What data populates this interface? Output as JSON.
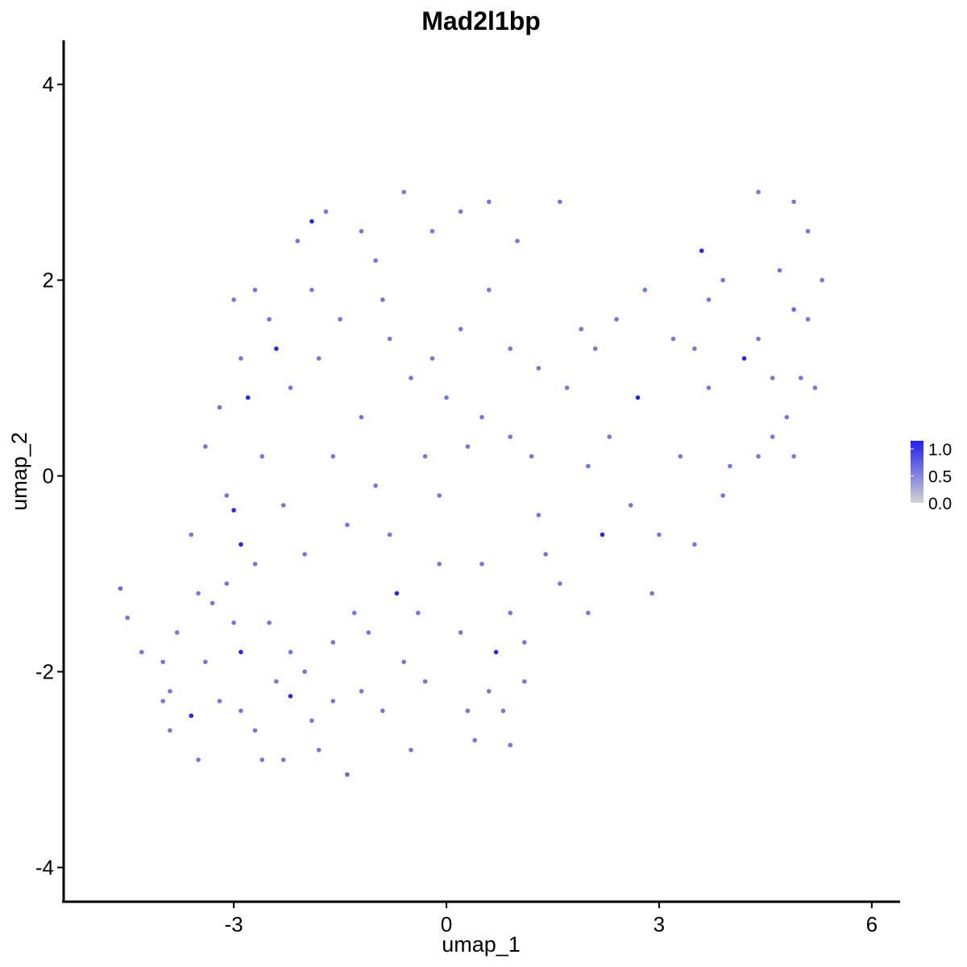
{
  "chart_data": {
    "type": "scatter",
    "title": "Mad2l1bp",
    "xlabel": "umap_1",
    "ylabel": "umap_2",
    "xlim": [
      -5.4,
      6.4
    ],
    "ylim": [
      -4.35,
      4.45
    ],
    "x_ticks": [
      {
        "value": -3,
        "label": "-3"
      },
      {
        "value": 0,
        "label": "0"
      },
      {
        "value": 3,
        "label": "3"
      },
      {
        "value": 6,
        "label": "6"
      }
    ],
    "y_ticks": [
      {
        "value": -4,
        "label": "-4"
      },
      {
        "value": -2,
        "label": "-2"
      },
      {
        "value": 0,
        "label": "0"
      },
      {
        "value": 2,
        "label": "2"
      },
      {
        "value": 4,
        "label": "4"
      }
    ],
    "grid": false,
    "legend": {
      "placement": "right",
      "type": "colorbar",
      "min": 0,
      "max": 1.15,
      "low_color": "#d3d3d3",
      "high_color": "#2020f0",
      "ticks": [
        {
          "value": 1.0,
          "label": "1.0"
        },
        {
          "value": 0.5,
          "label": "0.5"
        },
        {
          "value": 0.0,
          "label": "0.0"
        }
      ]
    },
    "colors": {
      "background": "#ffffff",
      "low": "#d3d3d3",
      "high": "#2020f0"
    },
    "points": [
      [
        -1.9,
        2.6,
        1.1
      ],
      [
        0.6,
        2.8,
        0.6
      ],
      [
        -2.4,
        1.3,
        1.1
      ],
      [
        -3.0,
        1.8,
        0.6
      ],
      [
        -2.8,
        0.8,
        1.1
      ],
      [
        2.7,
        0.8,
        1.1
      ],
      [
        3.6,
        2.3,
        1.1
      ],
      [
        4.2,
        1.2,
        1.1
      ],
      [
        4.9,
        1.7,
        0.7
      ],
      [
        2.2,
        -0.6,
        1.1
      ],
      [
        -2.9,
        -0.7,
        1.1
      ],
      [
        -3.0,
        -0.35,
        1.1
      ],
      [
        -0.7,
        -1.2,
        1.1
      ],
      [
        0.7,
        -1.8,
        1.1
      ],
      [
        -2.2,
        -2.25,
        1.1
      ],
      [
        -3.6,
        -2.45,
        1.1
      ],
      [
        -2.9,
        -1.8,
        1.1
      ],
      [
        -1.4,
        -3.05,
        0.7
      ],
      [
        -4.6,
        -1.15,
        0.7
      ],
      [
        -4.5,
        -1.45,
        0.6
      ],
      [
        -4.3,
        -1.8,
        0.6
      ],
      [
        -3.9,
        -2.6,
        0.6
      ],
      [
        -3.5,
        -2.9,
        0.6
      ],
      [
        -2.6,
        -2.9,
        0.6
      ],
      [
        -1.8,
        -2.8,
        0.6
      ],
      [
        -0.9,
        -2.4,
        0.6
      ],
      [
        0.4,
        -2.7,
        0.6
      ],
      [
        0.9,
        -2.75,
        0.6
      ],
      [
        -0.3,
        -2.1,
        0.6
      ],
      [
        1.1,
        -1.7,
        0.6
      ],
      [
        -2.0,
        -2.0,
        0.6
      ],
      [
        -1.6,
        -1.7,
        0.6
      ],
      [
        -2.5,
        -1.5,
        0.6
      ],
      [
        -3.3,
        -1.3,
        0.6
      ],
      [
        -3.6,
        -0.6,
        0.6
      ],
      [
        -2.3,
        -0.3,
        0.6
      ],
      [
        -1.0,
        -0.1,
        0.6
      ],
      [
        -0.1,
        -0.2,
        0.6
      ],
      [
        0.3,
        0.3,
        0.6
      ],
      [
        -1.2,
        0.6,
        0.6
      ],
      [
        -0.5,
        1.0,
        0.6
      ],
      [
        0.9,
        1.3,
        0.6
      ],
      [
        1.3,
        1.1,
        0.6
      ],
      [
        1.9,
        1.5,
        0.6
      ],
      [
        2.4,
        1.6,
        0.6
      ],
      [
        3.2,
        1.4,
        0.6
      ],
      [
        3.7,
        1.8,
        0.6
      ],
      [
        4.4,
        1.4,
        0.6
      ],
      [
        4.7,
        2.1,
        0.6
      ],
      [
        5.1,
        2.5,
        0.6
      ],
      [
        4.4,
        2.9,
        0.6
      ],
      [
        3.9,
        2.0,
        0.6
      ],
      [
        5.0,
        1.0,
        0.6
      ],
      [
        4.6,
        0.4,
        0.6
      ],
      [
        3.3,
        0.2,
        0.6
      ],
      [
        3.5,
        -0.7,
        0.6
      ],
      [
        2.9,
        -1.2,
        0.6
      ],
      [
        2.0,
        -1.4,
        0.6
      ],
      [
        1.4,
        -0.8,
        0.6
      ],
      [
        0.5,
        -0.9,
        0.6
      ],
      [
        -0.2,
        2.5,
        0.6
      ],
      [
        -1.0,
        2.2,
        0.6
      ],
      [
        -1.7,
        2.7,
        0.6
      ],
      [
        -2.1,
        2.4,
        0.6
      ],
      [
        -2.7,
        1.9,
        0.6
      ],
      [
        -1.5,
        1.6,
        0.6
      ],
      [
        -0.8,
        1.4,
        0.6
      ],
      [
        0.2,
        1.5,
        0.6
      ],
      [
        0.6,
        1.9,
        0.6
      ],
      [
        -1.8,
        1.2,
        0.6
      ],
      [
        -3.2,
        0.7,
        0.6
      ],
      [
        -3.1,
        -0.2,
        0.6
      ],
      [
        -2.7,
        -0.9,
        0.6
      ],
      [
        -3.1,
        -1.1,
        0.6
      ],
      [
        -3.8,
        -1.6,
        0.6
      ],
      [
        -4.0,
        -1.9,
        0.6
      ],
      [
        -3.9,
        -2.2,
        0.6
      ],
      [
        -3.2,
        -2.3,
        0.6
      ],
      [
        -2.7,
        -2.6,
        0.6
      ],
      [
        -1.1,
        -1.6,
        0.6
      ],
      [
        -0.4,
        -1.4,
        0.6
      ],
      [
        0.2,
        -1.6,
        0.6
      ],
      [
        0.6,
        -2.2,
        0.6
      ],
      [
        -0.5,
        -2.8,
        0.6
      ],
      [
        1.3,
        -0.4,
        0.6
      ],
      [
        0.0,
        0.8,
        0.6
      ],
      [
        -0.3,
        0.2,
        0.6
      ],
      [
        -1.4,
        -0.5,
        0.6
      ],
      [
        -2.0,
        -0.8,
        0.6
      ],
      [
        -2.6,
        0.2,
        0.6
      ],
      [
        -2.2,
        0.9,
        0.6
      ],
      [
        -1.6,
        0.2,
        0.6
      ],
      [
        0.9,
        0.4,
        0.6
      ],
      [
        1.7,
        0.9,
        0.6
      ],
      [
        2.3,
        0.4,
        0.6
      ],
      [
        3.7,
        0.9,
        0.6
      ],
      [
        4.0,
        0.1,
        0.6
      ],
      [
        4.8,
        0.6,
        0.6
      ],
      [
        5.3,
        2.0,
        0.6
      ],
      [
        4.9,
        2.8,
        0.6
      ],
      [
        -4.0,
        -2.3,
        0.6
      ],
      [
        -3.4,
        -1.9,
        0.6
      ],
      [
        -2.9,
        -2.4,
        0.6
      ],
      [
        -2.4,
        -2.1,
        0.6
      ],
      [
        -1.9,
        -2.5,
        0.6
      ],
      [
        -1.2,
        -2.2,
        0.6
      ],
      [
        -0.6,
        -1.9,
        0.6
      ],
      [
        0.3,
        -2.4,
        0.6
      ],
      [
        0.8,
        -2.4,
        0.6
      ],
      [
        1.1,
        -2.1,
        0.6
      ],
      [
        -3.5,
        -1.2,
        0.6
      ],
      [
        -3.0,
        -1.5,
        0.6
      ],
      [
        -2.2,
        -1.8,
        0.6
      ],
      [
        -1.6,
        -2.3,
        0.6
      ],
      [
        -2.3,
        -2.9,
        0.6
      ],
      [
        -1.3,
        -1.4,
        0.6
      ],
      [
        -0.8,
        -0.6,
        0.6
      ],
      [
        -0.1,
        -0.9,
        0.6
      ],
      [
        0.9,
        -1.4,
        0.6
      ],
      [
        1.6,
        -1.1,
        0.6
      ],
      [
        -3.4,
        0.3,
        0.6
      ],
      [
        -2.9,
        1.2,
        0.6
      ],
      [
        -2.5,
        1.6,
        0.6
      ],
      [
        -1.9,
        1.9,
        0.6
      ],
      [
        -1.2,
        2.5,
        0.6
      ],
      [
        -0.6,
        2.9,
        0.6
      ],
      [
        0.2,
        2.7,
        0.6
      ],
      [
        1.0,
        2.4,
        0.6
      ],
      [
        1.6,
        2.8,
        0.6
      ],
      [
        -0.9,
        1.8,
        0.6
      ],
      [
        -0.2,
        1.2,
        0.6
      ],
      [
        0.5,
        0.6,
        0.6
      ],
      [
        1.2,
        0.2,
        0.6
      ],
      [
        2.0,
        0.1,
        0.6
      ],
      [
        2.6,
        -0.3,
        0.6
      ],
      [
        3.0,
        -0.6,
        0.6
      ],
      [
        3.9,
        -0.2,
        0.6
      ],
      [
        4.4,
        0.2,
        0.6
      ],
      [
        4.9,
        0.2,
        0.6
      ],
      [
        5.2,
        0.9,
        0.6
      ],
      [
        5.1,
        1.6,
        0.6
      ],
      [
        4.6,
        1.0,
        0.6
      ],
      [
        3.5,
        1.3,
        0.6
      ],
      [
        2.8,
        1.9,
        0.6
      ],
      [
        2.1,
        1.3,
        0.6
      ]
    ]
  }
}
